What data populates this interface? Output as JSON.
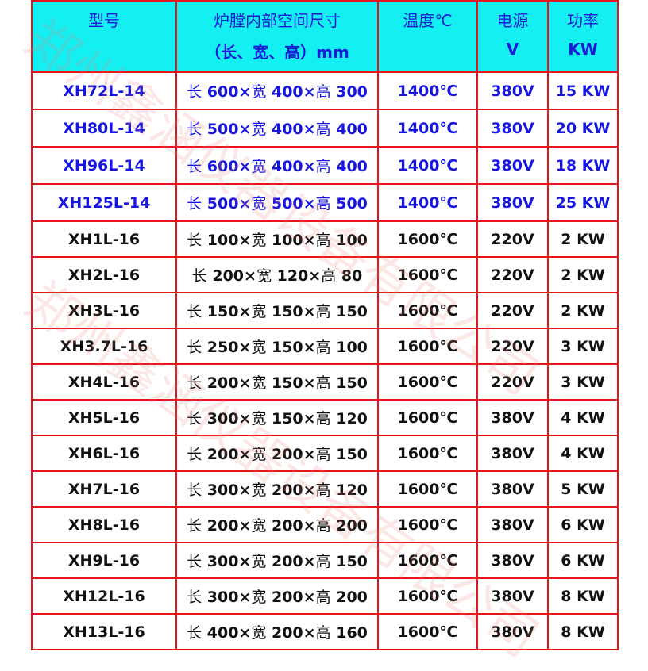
{
  "header": {
    "model": "型号",
    "size_line1": "炉膛内部空间尺寸",
    "size_line2": "（长、宽、高）mm",
    "temp": "温度℃",
    "power_line1": "电源",
    "power_line2": "V",
    "watt_line1": "功率",
    "watt_line2": "KW"
  },
  "colors": {
    "header_bg": "#14f0f2",
    "border": "#e8141b",
    "blue_text": "#1616e0"
  },
  "rows": [
    {
      "model": "XH72L-14",
      "l": "600",
      "w": "400",
      "h": "300",
      "temp": "1400℃",
      "volt": "380V",
      "kw": "15 KW",
      "blue": true
    },
    {
      "model": "XH80L-14",
      "l": "500",
      "w": "400",
      "h": "400",
      "temp": "1400℃",
      "volt": "380V",
      "kw": "20 KW",
      "blue": true
    },
    {
      "model": "XH96L-14",
      "l": "600",
      "w": "400",
      "h": "400",
      "temp": "1400℃",
      "volt": "380V",
      "kw": "18 KW",
      "blue": true
    },
    {
      "model": "XH125L-14",
      "l": "500",
      "w": "500",
      "h": "500",
      "temp": "1400℃",
      "volt": "380V",
      "kw": "25 KW",
      "blue": true
    },
    {
      "model": "XH1L-16",
      "l": "100",
      "w": "100",
      "h": "100",
      "temp": "1600℃",
      "volt": "220V",
      "kw": "2 KW"
    },
    {
      "model": "XH2L-16",
      "l": "200",
      "w": "120",
      "h": "80",
      "temp": "1600℃",
      "volt": "220V",
      "kw": "2 KW"
    },
    {
      "model": "XH3L-16",
      "l": "150",
      "w": "150",
      "h": "150",
      "temp": "1600℃",
      "volt": "220V",
      "kw": "2 KW"
    },
    {
      "model": "XH3.7L-16",
      "l": "250",
      "w": "150",
      "h": "100",
      "temp": "1600℃",
      "volt": "220V",
      "kw": "3 KW"
    },
    {
      "model": "XH4L-16",
      "l": "200",
      "w": "150",
      "h": "150",
      "temp": "1600℃",
      "volt": "220V",
      "kw": "3 KW"
    },
    {
      "model": "XH5L-16",
      "l": "300",
      "w": "150",
      "h": "120",
      "temp": "1600℃",
      "volt": "380V",
      "kw": "4 KW"
    },
    {
      "model": "XH6L-16",
      "l": "200",
      "w": "200",
      "h": "150",
      "temp": "1600℃",
      "volt": "380V",
      "kw": "4 KW"
    },
    {
      "model": "XH7L-16",
      "l": "300",
      "w": "200",
      "h": "120",
      "temp": "1600℃",
      "volt": "380V",
      "kw": "5 KW"
    },
    {
      "model": "XH8L-16",
      "l": "200",
      "w": "200",
      "h": "200",
      "temp": "1600℃",
      "volt": "380V",
      "kw": "6 KW"
    },
    {
      "model": "XH9L-16",
      "l": "300",
      "w": "200",
      "h": "150",
      "temp": "1600℃",
      "volt": "380V",
      "kw": "6 KW"
    },
    {
      "model": "XH12L-16",
      "l": "300",
      "w": "200",
      "h": "200",
      "temp": "1600℃",
      "volt": "380V",
      "kw": "8 KW"
    },
    {
      "model": "XH13L-16",
      "l": "400",
      "w": "200",
      "h": "160",
      "temp": "1600℃",
      "volt": "380V",
      "kw": "8 KW"
    }
  ],
  "labels": {
    "len": "长",
    "wid": "宽",
    "hgt": "高",
    "times": "×"
  },
  "watermark": "郑州鑫涵仪器设备有限公司"
}
